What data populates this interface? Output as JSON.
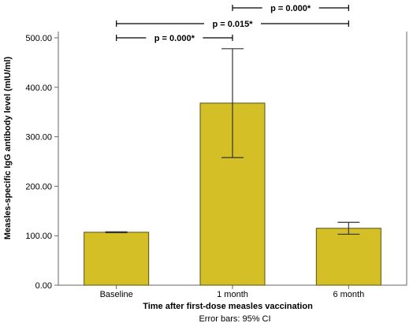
{
  "chart_data": {
    "type": "bar",
    "title": "",
    "xlabel": "Time after first-dose measles vaccination",
    "ylabel": "Measles-specific IgG antibody level (mIU/ml)",
    "categories": [
      "Baseline",
      "1 month",
      "6 month"
    ],
    "values": [
      107,
      368,
      115
    ],
    "error_bars": [
      {
        "low": 106,
        "high": 108
      },
      {
        "low": 258,
        "high": 478
      },
      {
        "low": 103,
        "high": 127
      }
    ],
    "ylim": [
      0,
      500
    ],
    "yticks": [
      0,
      100,
      200,
      300,
      400,
      500
    ],
    "ytick_labels": [
      "0.00",
      "100.00",
      "200.00",
      "300.00",
      "400.00",
      "500.00"
    ],
    "grid": false,
    "note": "Error bars: 95% CI",
    "significance": [
      {
        "from": 0,
        "to": 1,
        "label": "p = 0.000*",
        "level": 0
      },
      {
        "from": 0,
        "to": 2,
        "label": "p = 0.015*",
        "level": 1
      },
      {
        "from": 1,
        "to": 2,
        "label": "p = 0.000*",
        "level": 2
      }
    ],
    "colors": {
      "bar": "#d4c026",
      "bar_edge": "#5a5010",
      "axis": "#666666",
      "error": "#333333"
    }
  }
}
